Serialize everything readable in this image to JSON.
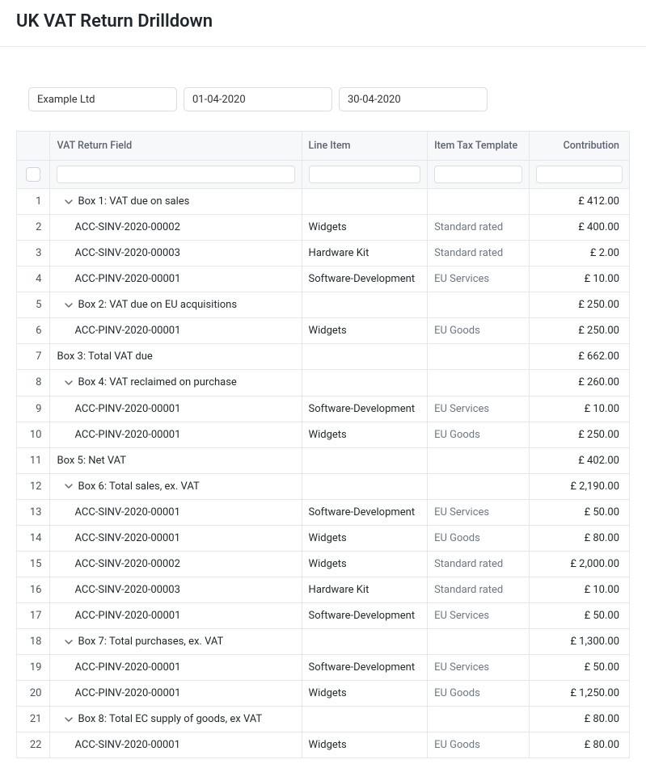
{
  "page": {
    "title": "UK VAT Return Drilldown"
  },
  "filters": {
    "company": "Example Ltd",
    "from_date": "01-04-2020",
    "to_date": "30-04-2020"
  },
  "columns": {
    "num": "",
    "field": "VAT Return Field",
    "line_item": "Line Item",
    "tax_template": "Item Tax Template",
    "contribution": "Contribution"
  },
  "rows": [
    {
      "n": "1",
      "indent": 1,
      "expand": true,
      "field": "Box 1: VAT due on sales",
      "item": "",
      "tax": "",
      "contrib": "£ 412.00"
    },
    {
      "n": "2",
      "indent": 2,
      "expand": false,
      "field": "ACC-SINV-2020-00002",
      "item": "Widgets",
      "tax": "Standard rated",
      "contrib": "£ 400.00"
    },
    {
      "n": "3",
      "indent": 2,
      "expand": false,
      "field": "ACC-SINV-2020-00003",
      "item": "Hardware Kit",
      "tax": "Standard rated",
      "contrib": "£ 2.00"
    },
    {
      "n": "4",
      "indent": 2,
      "expand": false,
      "field": "ACC-PINV-2020-00001",
      "item": "Software-Development",
      "tax": "EU Services",
      "contrib": "£ 10.00"
    },
    {
      "n": "5",
      "indent": 1,
      "expand": true,
      "field": "Box 2: VAT due on EU acquisitions",
      "item": "",
      "tax": "",
      "contrib": "£ 250.00"
    },
    {
      "n": "6",
      "indent": 2,
      "expand": false,
      "field": "ACC-PINV-2020-00001",
      "item": "Widgets",
      "tax": "EU Goods",
      "contrib": "£ 250.00"
    },
    {
      "n": "7",
      "indent": 0,
      "expand": false,
      "field": "Box 3: Total VAT due",
      "item": "",
      "tax": "",
      "contrib": "£ 662.00"
    },
    {
      "n": "8",
      "indent": 1,
      "expand": true,
      "field": "Box 4: VAT reclaimed on purchase",
      "item": "",
      "tax": "",
      "contrib": "£ 260.00"
    },
    {
      "n": "9",
      "indent": 2,
      "expand": false,
      "field": "ACC-PINV-2020-00001",
      "item": "Software-Development",
      "tax": "EU Services",
      "contrib": "£ 10.00"
    },
    {
      "n": "10",
      "indent": 2,
      "expand": false,
      "field": "ACC-PINV-2020-00001",
      "item": "Widgets",
      "tax": "EU Goods",
      "contrib": "£ 250.00"
    },
    {
      "n": "11",
      "indent": 0,
      "expand": false,
      "field": "Box 5: Net VAT",
      "item": "",
      "tax": "",
      "contrib": "£ 402.00"
    },
    {
      "n": "12",
      "indent": 1,
      "expand": true,
      "field": "Box 6: Total sales, ex. VAT",
      "item": "",
      "tax": "",
      "contrib": "£ 2,190.00"
    },
    {
      "n": "13",
      "indent": 2,
      "expand": false,
      "field": "ACC-SINV-2020-00001",
      "item": "Software-Development",
      "tax": "EU Services",
      "contrib": "£ 50.00"
    },
    {
      "n": "14",
      "indent": 2,
      "expand": false,
      "field": "ACC-SINV-2020-00001",
      "item": "Widgets",
      "tax": "EU Goods",
      "contrib": "£ 80.00"
    },
    {
      "n": "15",
      "indent": 2,
      "expand": false,
      "field": "ACC-SINV-2020-00002",
      "item": "Widgets",
      "tax": "Standard rated",
      "contrib": "£ 2,000.00"
    },
    {
      "n": "16",
      "indent": 2,
      "expand": false,
      "field": "ACC-SINV-2020-00003",
      "item": "Hardware Kit",
      "tax": "Standard rated",
      "contrib": "£ 10.00"
    },
    {
      "n": "17",
      "indent": 2,
      "expand": false,
      "field": "ACC-PINV-2020-00001",
      "item": "Software-Development",
      "tax": "EU Services",
      "contrib": "£ 50.00"
    },
    {
      "n": "18",
      "indent": 1,
      "expand": true,
      "field": "Box 7: Total purchases, ex. VAT",
      "item": "",
      "tax": "",
      "contrib": "£ 1,300.00"
    },
    {
      "n": "19",
      "indent": 2,
      "expand": false,
      "field": "ACC-PINV-2020-00001",
      "item": "Software-Development",
      "tax": "EU Services",
      "contrib": "£ 50.00"
    },
    {
      "n": "20",
      "indent": 2,
      "expand": false,
      "field": "ACC-PINV-2020-00001",
      "item": "Widgets",
      "tax": "EU Goods",
      "contrib": "£ 1,250.00"
    },
    {
      "n": "21",
      "indent": 1,
      "expand": true,
      "field": "Box 8: Total EC supply of goods, ex VAT",
      "item": "",
      "tax": "",
      "contrib": "£ 80.00"
    },
    {
      "n": "22",
      "indent": 2,
      "expand": false,
      "field": "ACC-SINV-2020-00001",
      "item": "Widgets",
      "tax": "EU Goods",
      "contrib": "£ 80.00"
    }
  ]
}
